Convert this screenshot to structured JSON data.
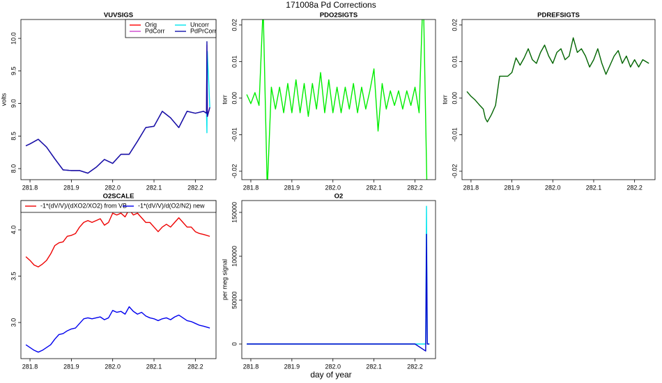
{
  "page": {
    "title": "171008a   Pd Corrections",
    "xlabel": "day of year"
  },
  "chart_data": [
    {
      "type": "line",
      "title": "VUVSIGS",
      "ylabel": "volts",
      "legend": "topright",
      "legend_columns": 2,
      "xlim": [
        281.778,
        282.25
      ],
      "ylim": [
        7.83,
        10.29
      ],
      "xticks": [
        281.8,
        281.9,
        {
          "value": 282.0,
          "label": "282.0"
        },
        282.1,
        282.2
      ],
      "yticks": [
        {
          "value": 8,
          "label": "8.0"
        },
        8.5,
        {
          "value": 9,
          "label": "9.0"
        },
        9.5,
        {
          "value": 10,
          "label": "10.0"
        }
      ],
      "x": [
        281.79,
        281.8,
        281.82,
        281.84,
        281.86,
        281.88,
        281.9,
        281.92,
        281.94,
        281.96,
        281.98,
        282.0,
        282.02,
        282.04,
        282.06,
        282.08,
        282.1,
        282.12,
        282.14,
        282.16,
        282.18,
        282.2,
        282.22,
        282.227,
        282.228,
        282.229,
        282.235
      ],
      "series": [
        {
          "name": "Orig",
          "color": "#ff0000",
          "values": [
            8.35,
            8.38,
            8.45,
            8.33,
            8.15,
            7.98,
            7.97,
            7.97,
            7.93,
            8.02,
            8.14,
            8.08,
            8.22,
            8.22,
            8.42,
            8.63,
            8.65,
            8.88,
            8.78,
            8.63,
            8.88,
            8.85,
            8.88,
            8.85,
            9.8,
            8.8,
            8.94
          ]
        },
        {
          "name": "Uncorr",
          "color": "#00e5ee",
          "values": [
            8.35,
            8.38,
            8.45,
            8.33,
            8.15,
            7.98,
            7.97,
            7.97,
            7.93,
            8.02,
            8.14,
            8.08,
            8.22,
            8.22,
            8.42,
            8.63,
            8.65,
            8.88,
            8.78,
            8.63,
            8.88,
            8.85,
            8.88,
            8.85,
            8.55,
            9.8,
            8.94
          ]
        },
        {
          "name": "PdCorr",
          "color": "#cc44cc",
          "values": [
            8.35,
            8.38,
            8.45,
            8.33,
            8.15,
            7.98,
            7.97,
            7.97,
            7.93,
            8.02,
            8.14,
            8.08,
            8.22,
            8.22,
            8.42,
            8.63,
            8.65,
            8.88,
            8.78,
            8.63,
            8.88,
            8.85,
            8.88,
            8.85,
            9.9,
            8.8,
            8.94
          ]
        },
        {
          "name": "PdPrCorr",
          "color": "#1010aa",
          "values": [
            8.35,
            8.38,
            8.45,
            8.33,
            8.15,
            7.98,
            7.97,
            7.97,
            7.93,
            8.02,
            8.14,
            8.08,
            8.22,
            8.22,
            8.42,
            8.63,
            8.65,
            8.88,
            8.78,
            8.63,
            8.88,
            8.85,
            8.88,
            8.85,
            9.95,
            8.8,
            8.94
          ]
        }
      ]
    },
    {
      "type": "line",
      "title": "PDO2SIGTS",
      "ylabel": "torr",
      "xlim": [
        281.778,
        282.25
      ],
      "ylim": [
        -0.0223,
        0.0215
      ],
      "xticks": [
        281.8,
        281.9,
        {
          "value": 282.0,
          "label": "282.0"
        },
        282.1,
        282.2
      ],
      "yticks": [
        -0.02,
        -0.01,
        {
          "value": 0,
          "label": "0.00"
        },
        0.01,
        0.02
      ],
      "x": [
        281.79,
        281.8,
        281.81,
        281.82,
        281.83,
        281.84,
        281.85,
        281.86,
        281.87,
        281.88,
        281.89,
        281.9,
        281.91,
        281.92,
        281.93,
        281.94,
        281.95,
        281.96,
        281.97,
        281.98,
        281.99,
        282.0,
        282.01,
        282.02,
        282.03,
        282.04,
        282.05,
        282.06,
        282.07,
        282.08,
        282.09,
        282.1,
        282.11,
        282.12,
        282.13,
        282.14,
        282.15,
        282.16,
        282.17,
        282.18,
        282.19,
        282.2,
        282.21,
        282.22,
        282.23
      ],
      "series": [
        {
          "color": "#00ee00",
          "values": [
            0.001,
            -0.0015,
            0.0015,
            -0.002,
            0.025,
            -0.025,
            0.003,
            -0.003,
            0.003,
            -0.004,
            0.004,
            -0.004,
            0.005,
            -0.004,
            0.004,
            -0.005,
            0.004,
            -0.003,
            0.007,
            -0.004,
            0.005,
            -0.004,
            0.003,
            -0.004,
            0.003,
            -0.003,
            0.004,
            -0.004,
            0.003,
            -0.003,
            0.002,
            0.008,
            -0.009,
            0.004,
            -0.003,
            0.002,
            -0.002,
            0.002,
            -0.003,
            0.002,
            -0.002,
            0.003,
            -0.004,
            0.03,
            -0.03
          ]
        }
      ]
    },
    {
      "type": "line",
      "title": "PDREFSIGTS",
      "ylabel": "torr",
      "xlim": [
        281.778,
        282.25
      ],
      "ylim": [
        -0.0223,
        0.0215
      ],
      "xticks": [
        281.8,
        281.9,
        {
          "value": 282.0,
          "label": "282.0"
        },
        282.1,
        282.2
      ],
      "yticks": [
        -0.02,
        -0.01,
        {
          "value": 0,
          "label": "0.00"
        },
        0.01,
        0.02
      ],
      "x": [
        281.79,
        281.8,
        281.81,
        281.82,
        281.83,
        281.835,
        281.84,
        281.85,
        281.86,
        281.87,
        281.88,
        281.89,
        281.9,
        281.91,
        281.92,
        281.93,
        281.94,
        281.95,
        281.96,
        281.97,
        281.98,
        281.99,
        282.0,
        282.01,
        282.02,
        282.03,
        282.04,
        282.05,
        282.06,
        282.07,
        282.08,
        282.09,
        282.1,
        282.11,
        282.12,
        282.13,
        282.14,
        282.15,
        282.16,
        282.17,
        282.18,
        282.19,
        282.2,
        282.21,
        282.22,
        282.235
      ],
      "series": [
        {
          "color": "#006400",
          "values": [
            0.0018,
            0.0005,
            -0.0005,
            -0.0018,
            -0.003,
            -0.0055,
            -0.0065,
            -0.0045,
            -0.002,
            0.006,
            0.006,
            0.006,
            0.007,
            0.011,
            0.009,
            0.011,
            0.0135,
            0.0105,
            0.0095,
            0.0125,
            0.0145,
            0.0115,
            0.0095,
            0.0125,
            0.0135,
            0.0105,
            0.0115,
            0.0165,
            0.0125,
            0.0135,
            0.0115,
            0.0085,
            0.0105,
            0.0135,
            0.0095,
            0.0065,
            0.009,
            0.0115,
            0.013,
            0.0095,
            0.0115,
            0.0085,
            0.0105,
            0.0085,
            0.0105,
            0.0095
          ]
        }
      ]
    },
    {
      "type": "line",
      "title": "O2SCALE",
      "legend": "top",
      "legend_columns": 2,
      "xlim": [
        281.778,
        282.25
      ],
      "ylim": [
        2.61,
        4.316
      ],
      "xticks": [
        281.8,
        281.9,
        {
          "value": 282.0,
          "label": "282.0"
        },
        282.1,
        282.2
      ],
      "yticks": [
        {
          "value": 3,
          "label": "3.0"
        },
        3.5,
        {
          "value": 4,
          "label": "4.0"
        }
      ],
      "x": [
        281.79,
        281.8,
        281.81,
        281.82,
        281.83,
        281.84,
        281.85,
        281.86,
        281.87,
        281.88,
        281.89,
        281.9,
        281.91,
        281.92,
        281.93,
        281.94,
        281.95,
        281.96,
        281.97,
        281.98,
        281.99,
        282.0,
        282.01,
        282.02,
        282.03,
        282.04,
        282.05,
        282.06,
        282.07,
        282.08,
        282.09,
        282.1,
        282.11,
        282.12,
        282.13,
        282.14,
        282.15,
        282.16,
        282.17,
        282.18,
        282.19,
        282.2,
        282.21,
        282.22,
        282.235
      ],
      "series": [
        {
          "name": "-1*(dV/V)/(dXO2/XO2) from VB",
          "color": "#ee0000",
          "values": [
            3.71,
            3.67,
            3.62,
            3.6,
            3.63,
            3.67,
            3.74,
            3.83,
            3.86,
            3.87,
            3.93,
            3.94,
            3.96,
            4.03,
            4.08,
            4.1,
            4.08,
            4.1,
            4.12,
            4.05,
            4.08,
            4.18,
            4.16,
            4.18,
            4.14,
            4.22,
            4.16,
            4.18,
            4.13,
            4.08,
            4.08,
            4.03,
            3.98,
            4.03,
            4.06,
            4.03,
            4.08,
            4.13,
            4.08,
            4.03,
            4.03,
            3.98,
            3.96,
            3.95,
            3.93
          ]
        },
        {
          "name": "-1*(dV/V)/d(O2/N2) new",
          "color": "#0000ee",
          "values": [
            2.76,
            2.73,
            2.7,
            2.68,
            2.7,
            2.73,
            2.76,
            2.82,
            2.87,
            2.88,
            2.91,
            2.93,
            2.94,
            2.99,
            3.04,
            3.05,
            3.04,
            3.05,
            3.06,
            3.03,
            3.05,
            3.13,
            3.11,
            3.12,
            3.09,
            3.17,
            3.12,
            3.09,
            3.11,
            3.07,
            3.05,
            3.04,
            3.02,
            3.04,
            3.05,
            3.03,
            3.06,
            3.08,
            3.05,
            3.02,
            3.01,
            2.99,
            2.97,
            2.96,
            2.94
          ]
        }
      ]
    },
    {
      "type": "line",
      "title": "O2",
      "ylabel": "per meg signal",
      "xlim": [
        281.778,
        282.25
      ],
      "ylim": [
        -16667,
        163500
      ],
      "xticks": [
        281.8,
        281.9,
        {
          "value": 282.0,
          "label": "282.0"
        },
        282.1,
        282.2
      ],
      "yticks": [
        0,
        50000,
        100000,
        150000
      ],
      "x": [
        281.79,
        281.85,
        281.9,
        282.0,
        282.1,
        282.2,
        282.226,
        282.228,
        282.23,
        282.235
      ],
      "series": [
        {
          "color": "#00e5ee",
          "values": [
            0,
            0,
            0,
            0,
            0,
            0,
            0,
            157000,
            0,
            0
          ]
        },
        {
          "color": "#0000cc",
          "values": [
            0,
            0,
            0,
            0,
            0,
            0,
            -8000,
            125000,
            0,
            0
          ]
        }
      ]
    }
  ]
}
